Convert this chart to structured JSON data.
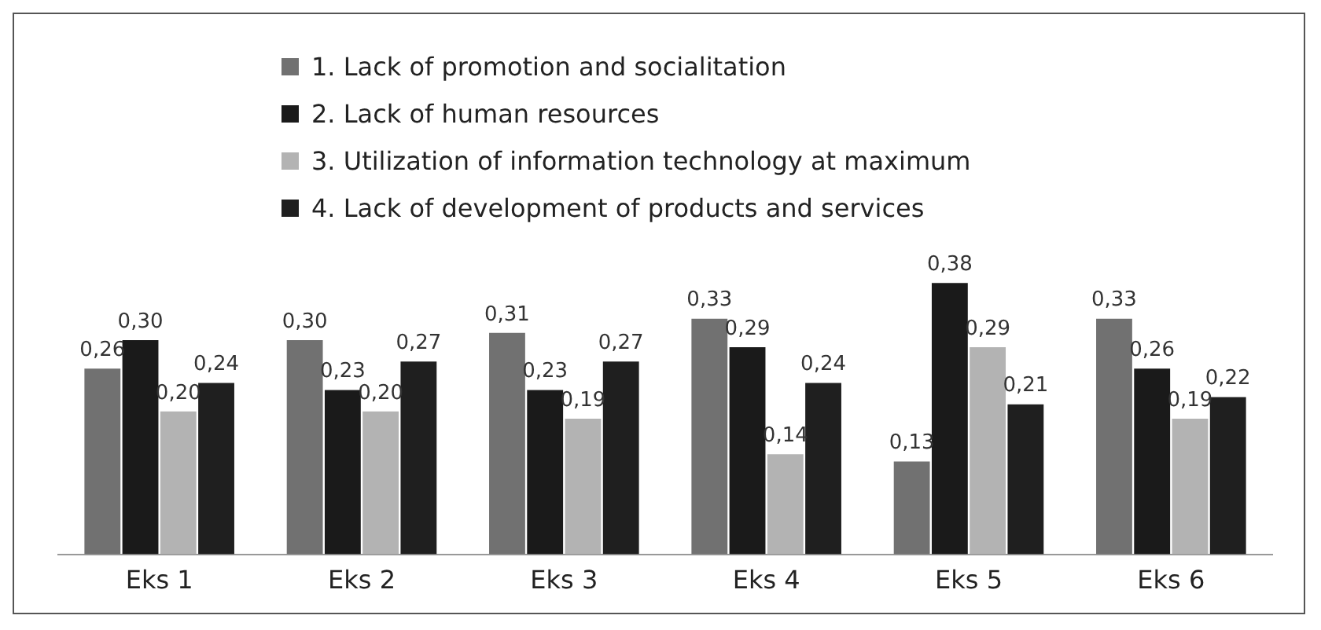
{
  "chart_data": {
    "type": "bar",
    "categories": [
      "Eks 1",
      "Eks 2",
      "Eks 3",
      "Eks 4",
      "Eks 5",
      "Eks 6"
    ],
    "series": [
      {
        "name": "1. Lack of promotion and socialitation",
        "color": "#717171",
        "values": [
          0.26,
          0.3,
          0.31,
          0.33,
          0.13,
          0.33
        ],
        "value_labels": [
          "0,26",
          "0,30",
          "0,31",
          "0,33",
          "0,13",
          "0,33"
        ]
      },
      {
        "name": "2. Lack of human resources",
        "color": "#1a1a1a",
        "values": [
          0.3,
          0.23,
          0.23,
          0.29,
          0.38,
          0.26
        ],
        "value_labels": [
          "0,30",
          "0,23",
          "0,23",
          "0,29",
          "0,38",
          "0,26"
        ]
      },
      {
        "name": "3. Utilization of information technology at maximum",
        "color": "#b3b3b3",
        "values": [
          0.2,
          0.2,
          0.19,
          0.14,
          0.29,
          0.19
        ],
        "value_labels": [
          "0,20",
          "0,20",
          "0,19",
          "0,14",
          "0,29",
          "0,19"
        ]
      },
      {
        "name": "4. Lack of development of products and services",
        "color": "#1f1f1f",
        "values": [
          0.24,
          0.27,
          0.27,
          0.24,
          0.21,
          0.22
        ],
        "value_labels": [
          "0,24",
          "0,27",
          "0,27",
          "0,24",
          "0,21",
          "0,22"
        ]
      }
    ],
    "legend": "top",
    "grid": false
  }
}
